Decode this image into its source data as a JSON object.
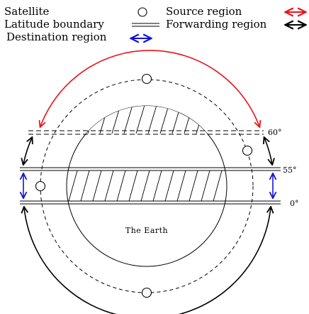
{
  "legend": {
    "satellite": "Satellite",
    "latitude_boundary": "Latitude boundary",
    "destination_region": "Destination region",
    "source_region": "Source region",
    "forwarding_region": "Forwarding region"
  },
  "labels": {
    "lat_60": "60°",
    "lat_55": "55°",
    "lat_0": "0°",
    "earth": "The Earth"
  },
  "colors": {
    "source": "#e8141b",
    "forwarding": "#000000",
    "destination": "#1414d2"
  }
}
